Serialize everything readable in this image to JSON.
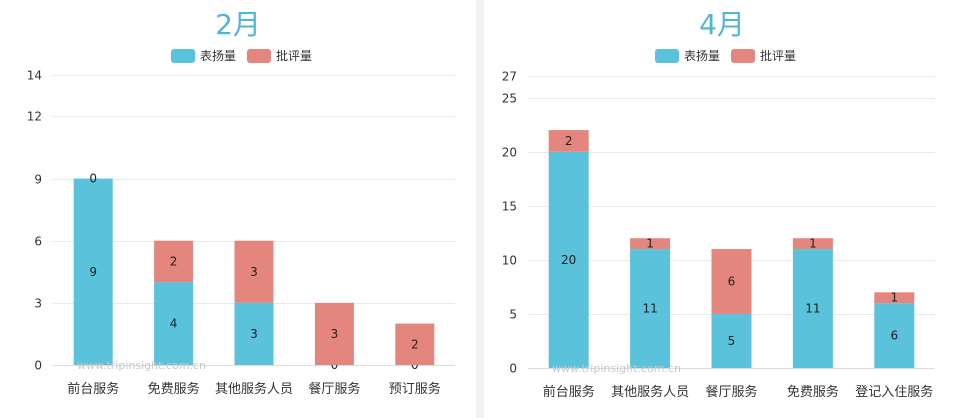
{
  "colors": {
    "praise": "#5bc2db",
    "criticism": "#e4867e",
    "title": "#4fb6d8"
  },
  "watermark": "www.tripinsight.com.cn",
  "chart_data": [
    {
      "type": "bar",
      "stacked": true,
      "title": "2月",
      "categories": [
        "前台服务",
        "免费服务",
        "其他服务人员",
        "餐厅服务",
        "预订服务"
      ],
      "series": [
        {
          "name": "表扬量",
          "values": [
            9,
            4,
            3,
            0,
            0
          ]
        },
        {
          "name": "批评量",
          "values": [
            0,
            2,
            3,
            3,
            2
          ]
        }
      ],
      "ylim": [
        0,
        14
      ],
      "yticks": [
        0,
        3,
        6,
        9,
        12,
        14
      ],
      "grid": true,
      "legend": "top-center"
    },
    {
      "type": "bar",
      "stacked": true,
      "title": "4月",
      "categories": [
        "前台服务",
        "其他服务人员",
        "餐厅服务",
        "免费服务",
        "登记入住服务"
      ],
      "series": [
        {
          "name": "表扬量",
          "values": [
            20,
            11,
            5,
            11,
            6
          ]
        },
        {
          "name": "批评量",
          "values": [
            2,
            1,
            6,
            1,
            1
          ]
        }
      ],
      "ylim": [
        0,
        27
      ],
      "yticks": [
        0,
        5,
        10,
        15,
        20,
        25,
        27
      ],
      "grid": true,
      "legend": "top-center"
    }
  ]
}
